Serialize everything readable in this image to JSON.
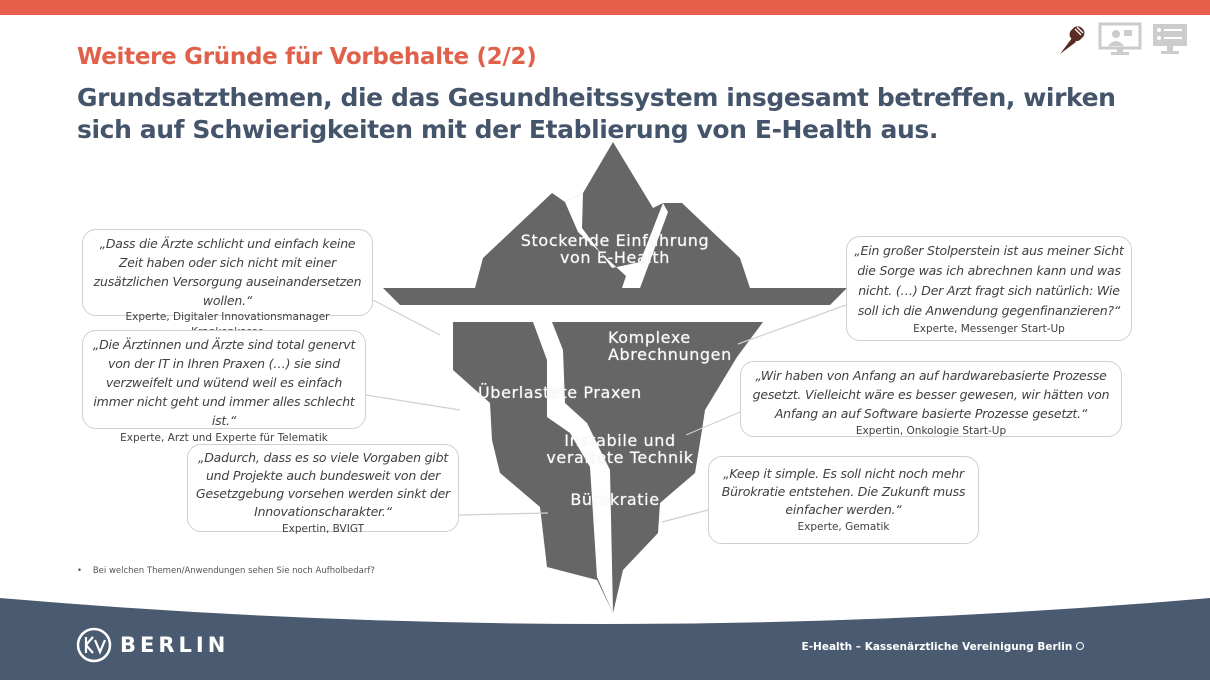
{
  "header": {
    "title": "Weitere Gründe für Vorbehalte (2/2)",
    "subtitle": "Grundsatzthemen, die das Gesundheitssystem insgesamt betreffen, wirken sich auf Schwierigkeiten mit der Etablierung von E-Health aus.",
    "icons": [
      "microphone-icon",
      "video-call-icon",
      "checklist-monitor-icon"
    ]
  },
  "colors": {
    "accent": "#e8604c",
    "title": "#e0604a",
    "subtitle": "#44546a",
    "iceberg": "#666666",
    "footer": "#4a5a70"
  },
  "iceberg": {
    "top_label": "Stockende Einführung von E-Health",
    "labels": [
      "Komplexe Abrechnungen",
      "Überlastete Praxen",
      "Instabile und veraltete Technik",
      "Bürokratie"
    ]
  },
  "quotes": [
    {
      "text": "„Dass die Ärzte schlicht und einfach keine Zeit haben oder sich nicht mit einer zusätzlichen Versorgung auseinandersetzen wollen.“",
      "source": "Experte, Digitaler Innovationsmanager Krankenkasse"
    },
    {
      "text": "„Die Ärztinnen und Ärzte sind total genervt von der IT in Ihren Praxen (…) sie sind verzweifelt und wütend weil es einfach immer nicht geht und immer alles schlecht ist.“",
      "source": "Experte, Arzt und Experte für Telematik"
    },
    {
      "text": "„Dadurch, dass es so viele Vorgaben gibt und Projekte auch bundesweit von der Gesetzgebung vorsehen werden sinkt der Innovationscharakter.“",
      "source": "Expertin, BVIGT"
    },
    {
      "text": "„Ein großer Stolperstein ist aus meiner Sicht die Sorge was ich abrechnen kann und was nicht. (…) Der Arzt fragt sich natürlich: Wie soll ich die Anwendung gegenfinanzieren?“",
      "source": "Experte, Messenger Start-Up"
    },
    {
      "text": "„Wir haben von Anfang an auf hardwarebasierte Prozesse gesetzt. Vielleicht wäre es besser gewesen, wir hätten von Anfang an auf Software basierte Prozesse gesetzt.“",
      "source": "Expertin, Onkologie Start-Up"
    },
    {
      "text": "„Keep it simple. Es soll nicht noch mehr Bürokratie entstehen. Die Zukunft muss einfacher werden.“",
      "source": "Experte, Gematik"
    }
  ],
  "note": "Bei welchen Themen/Anwendungen sehen Sie noch Aufholbedarf?",
  "footer": {
    "logo": "KV BERLIN",
    "logo_word": "BERLIN",
    "text": "E-Health – Kassenärztliche Vereinigung Berlin"
  }
}
